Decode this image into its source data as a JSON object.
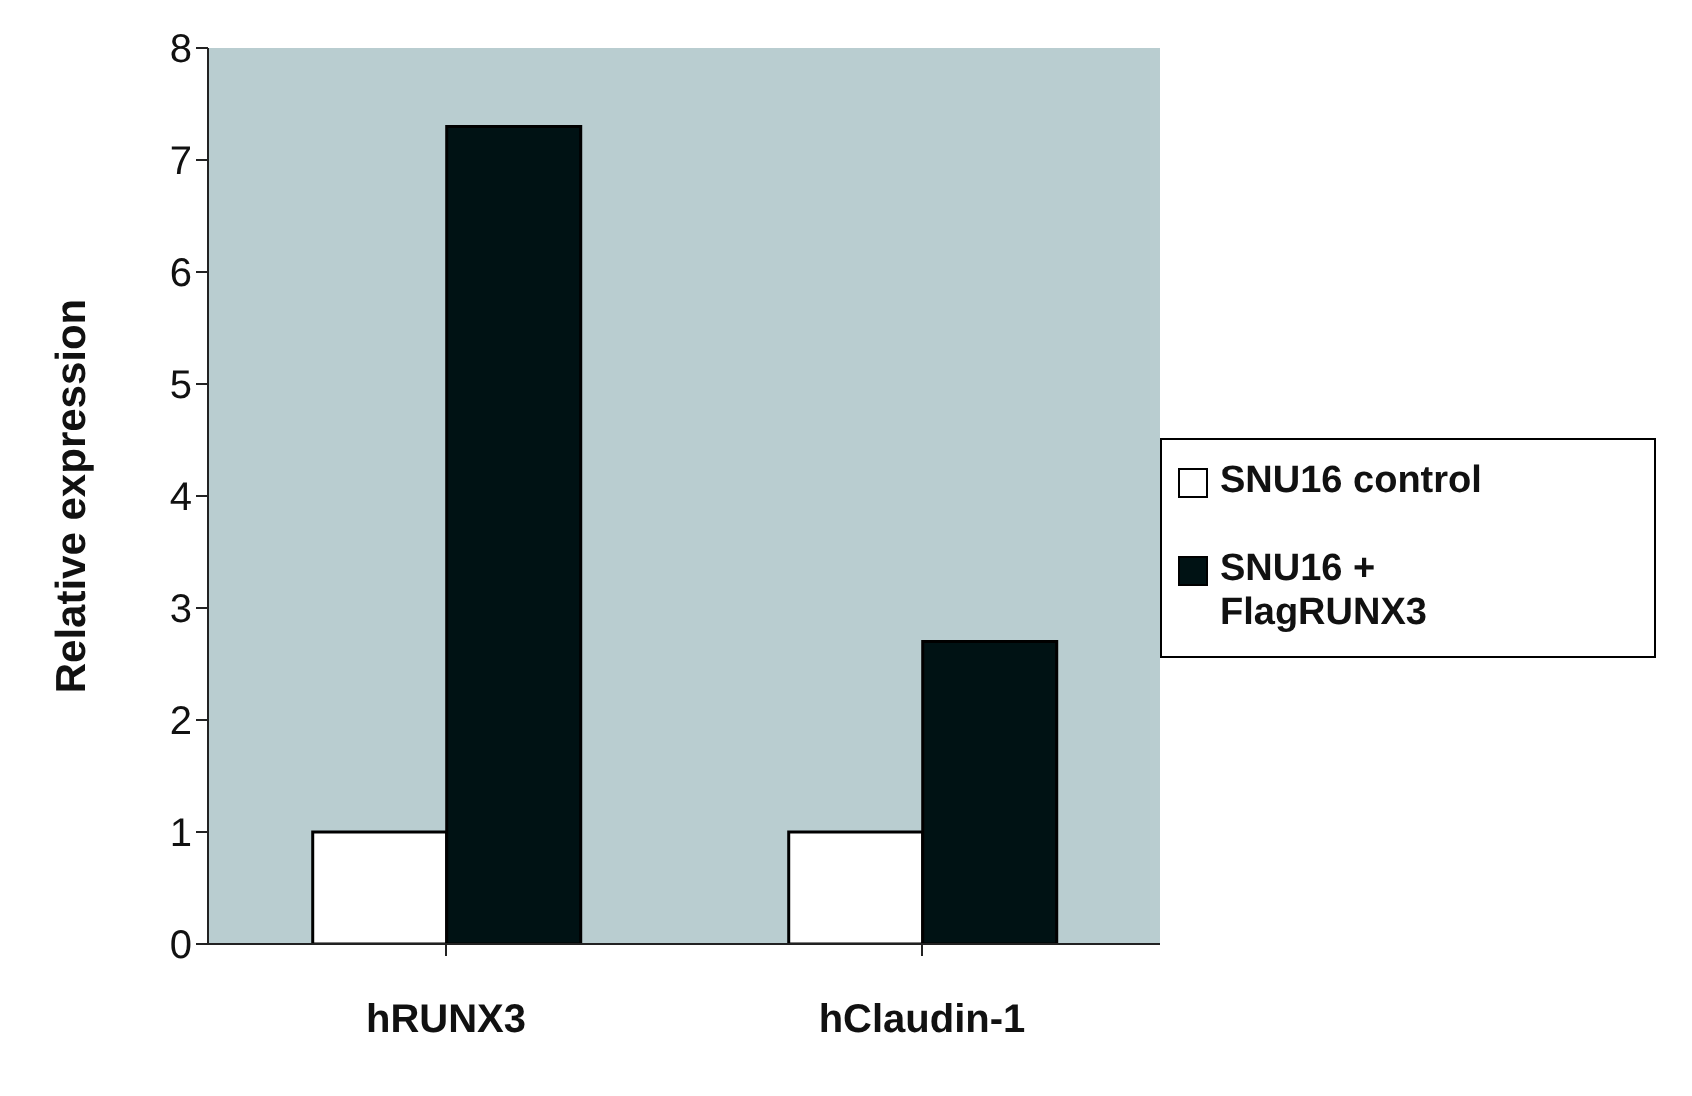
{
  "chart_data": {
    "type": "bar",
    "ylabel": "Relative expression",
    "categories": [
      "hRUNX3",
      "hClaudin-1"
    ],
    "series": [
      {
        "name": "SNU16 control",
        "color": "#ffffff",
        "values": [
          1,
          1
        ]
      },
      {
        "name": "SNU16 + FlagRUNX3",
        "color": "#001214",
        "values": [
          7.3,
          2.7
        ]
      }
    ],
    "ylim": [
      0,
      8
    ],
    "yticks": [
      0,
      1,
      2,
      3,
      4,
      5,
      6,
      7,
      8
    ],
    "grid": false,
    "legend": "right"
  }
}
